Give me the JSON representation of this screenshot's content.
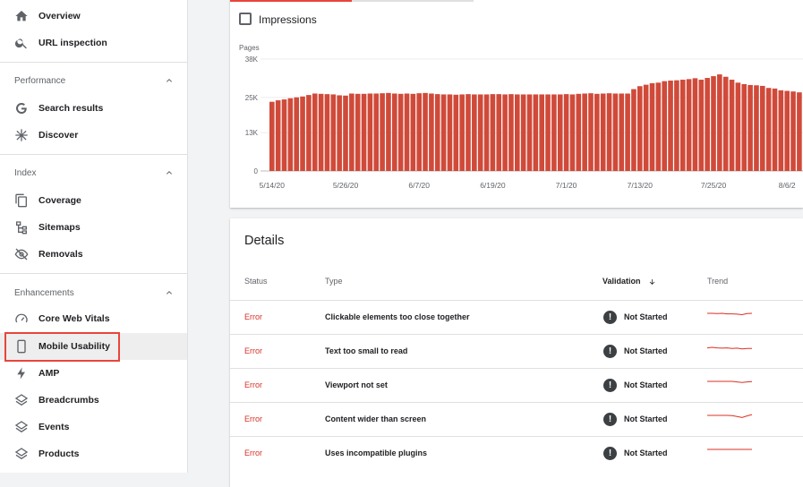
{
  "sidebar": {
    "top_items": [
      {
        "label": "Overview",
        "icon": "home-icon"
      },
      {
        "label": "URL inspection",
        "icon": "search-icon"
      }
    ],
    "sections": [
      {
        "title": "Performance",
        "items": [
          {
            "label": "Search results",
            "icon": "google-icon"
          },
          {
            "label": "Discover",
            "icon": "asterisk-icon"
          }
        ]
      },
      {
        "title": "Index",
        "items": [
          {
            "label": "Coverage",
            "icon": "copy-icon"
          },
          {
            "label": "Sitemaps",
            "icon": "sitemap-icon"
          },
          {
            "label": "Removals",
            "icon": "eye-off-icon"
          }
        ]
      },
      {
        "title": "Enhancements",
        "items": [
          {
            "label": "Core Web Vitals",
            "icon": "speedometer-icon"
          },
          {
            "label": "Mobile Usability",
            "icon": "phone-icon",
            "active": true
          },
          {
            "label": "AMP",
            "icon": "bolt-icon"
          },
          {
            "label": "Breadcrumbs",
            "icon": "layers-icon"
          },
          {
            "label": "Events",
            "icon": "layers-icon"
          },
          {
            "label": "Products",
            "icon": "layers-icon"
          }
        ]
      }
    ]
  },
  "chart": {
    "impressions_label": "Impressions",
    "accent_color": "#d04a3a"
  },
  "chart_data": {
    "type": "bar",
    "ylabel": "Pages",
    "yticks": [
      "38K",
      "25K",
      "13K",
      "0"
    ],
    "ytick_values": [
      38000,
      25000,
      13000,
      0
    ],
    "ylim": [
      0,
      38000
    ],
    "xticks": [
      "5/14/20",
      "5/26/20",
      "6/7/20",
      "6/19/20",
      "7/1/20",
      "7/13/20",
      "7/25/20",
      "8/6/2"
    ],
    "xtick_index": [
      0,
      12,
      24,
      36,
      48,
      60,
      72,
      84
    ],
    "values": [
      23500,
      24000,
      24300,
      24700,
      25000,
      25300,
      25800,
      26300,
      26200,
      26100,
      26000,
      25700,
      25600,
      26300,
      26200,
      26200,
      26300,
      26300,
      26400,
      26500,
      26300,
      26200,
      26300,
      26200,
      26400,
      26500,
      26300,
      26100,
      26000,
      26000,
      25900,
      26000,
      26100,
      26000,
      26000,
      26000,
      26100,
      26100,
      26000,
      26100,
      26000,
      26000,
      26000,
      26000,
      26000,
      26000,
      26000,
      26000,
      26100,
      26000,
      26200,
      26300,
      26400,
      26200,
      26300,
      26400,
      26300,
      26300,
      26300,
      27800,
      28800,
      29300,
      29800,
      30000,
      30500,
      30700,
      30800,
      31000,
      31200,
      31500,
      31000,
      31600,
      32200,
      32800,
      32000,
      31000,
      30000,
      29500,
      29200,
      29100,
      28900,
      28200,
      28000,
      27400,
      27200,
      27000,
      26700
    ]
  },
  "details": {
    "title": "Details",
    "columns": {
      "status": "Status",
      "type": "Type",
      "validation": "Validation",
      "trend": "Trend"
    },
    "rows": [
      {
        "status": "Error",
        "type": "Clickable elements too close together",
        "validation": "Not Started",
        "trend": [
          1,
          1,
          0.9,
          1,
          0.8,
          0.8,
          0.7,
          0.5,
          0.9,
          1
        ]
      },
      {
        "status": "Error",
        "type": "Text too small to read",
        "validation": "Not Started",
        "trend": [
          0.8,
          1,
          0.8,
          0.7,
          0.8,
          0.6,
          0.7,
          0.4,
          0.6,
          0.6
        ]
      },
      {
        "status": "Error",
        "type": "Viewport not set",
        "validation": "Not Started",
        "trend": [
          1,
          1,
          1,
          1,
          1,
          1,
          0.8,
          0.6,
          0.8,
          0.9
        ]
      },
      {
        "status": "Error",
        "type": "Content wider than screen",
        "validation": "Not Started",
        "trend": [
          1,
          1,
          1,
          1,
          1,
          0.9,
          0.6,
          0.2,
          0.8,
          1.3
        ]
      },
      {
        "status": "Error",
        "type": "Uses incompatible plugins",
        "validation": "Not Started",
        "trend": [
          1,
          1,
          1,
          1,
          1,
          1,
          1,
          1,
          1,
          1
        ]
      }
    ]
  }
}
